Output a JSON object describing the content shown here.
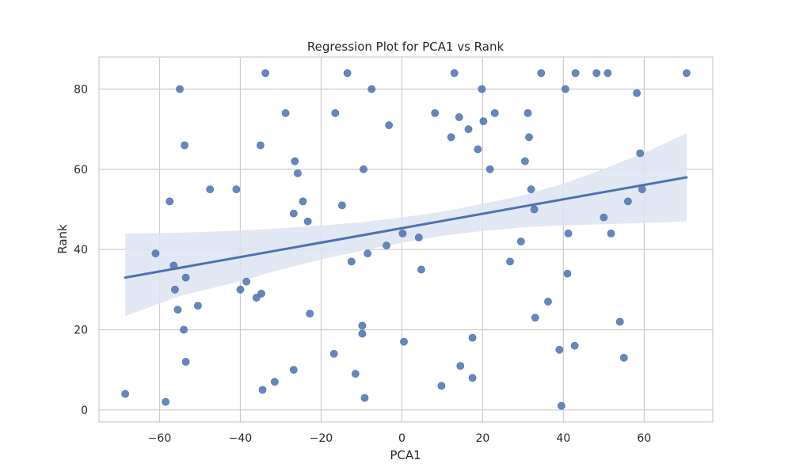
{
  "chart_data": {
    "type": "scatter",
    "title": "Regression Plot for PCA1 vs Rank",
    "xlabel": "PCA1",
    "ylabel": "Rank",
    "xlim": [
      -75,
      77
    ],
    "ylim": [
      -3,
      88
    ],
    "xticks": [
      -60,
      -40,
      -20,
      0,
      20,
      40,
      60
    ],
    "xtick_labels": [
      "−60",
      "−40",
      "−20",
      "0",
      "20",
      "40",
      "60"
    ],
    "yticks": [
      0,
      20,
      40,
      60,
      80
    ],
    "ytick_labels": [
      "0",
      "20",
      "40",
      "60",
      "80"
    ],
    "grid": true,
    "point_color": "#4c72b0",
    "line_color": "#4c72b0",
    "band_color": "#dde4f1",
    "regression": {
      "x_start": -68.5,
      "y_start": 33,
      "x_end": 70.5,
      "y_end": 58
    },
    "confidence_band": {
      "x": [
        -68.5,
        -55,
        -40,
        -30,
        -20,
        -10,
        0,
        10,
        20,
        30,
        40,
        50,
        60,
        70.5
      ],
      "lower": [
        23.4,
        28.4,
        32.1,
        35.0,
        37.5,
        39.7,
        41.7,
        43.4,
        44.6,
        45.5,
        46.0,
        46.3,
        46.6,
        47.0
      ],
      "upper": [
        44.0,
        44.2,
        44.7,
        45.3,
        46.0,
        46.8,
        48.0,
        49.4,
        51.4,
        53.5,
        56.4,
        60.1,
        64.1,
        69.0
      ]
    },
    "points": [
      [
        -68.5,
        4
      ],
      [
        -61,
        39
      ],
      [
        -58.5,
        2
      ],
      [
        -57.5,
        52
      ],
      [
        -56.5,
        36
      ],
      [
        -56.2,
        30
      ],
      [
        -55.5,
        25
      ],
      [
        -55,
        80
      ],
      [
        -54,
        20
      ],
      [
        -53.8,
        66
      ],
      [
        -53.5,
        33
      ],
      [
        -53.5,
        12
      ],
      [
        -50.5,
        26
      ],
      [
        -47.5,
        55
      ],
      [
        -41,
        55
      ],
      [
        -40,
        30
      ],
      [
        -38.5,
        32
      ],
      [
        -36,
        28
      ],
      [
        -35,
        66
      ],
      [
        -34.8,
        29
      ],
      [
        -34.5,
        5
      ],
      [
        -33.8,
        84
      ],
      [
        -31.5,
        7
      ],
      [
        -28.8,
        74
      ],
      [
        -26.8,
        10
      ],
      [
        -26.8,
        49
      ],
      [
        -26.5,
        62
      ],
      [
        -25.8,
        59
      ],
      [
        -24.5,
        52
      ],
      [
        -23.3,
        47
      ],
      [
        -22.8,
        24
      ],
      [
        -16.8,
        14
      ],
      [
        -16.5,
        74
      ],
      [
        -14.8,
        51
      ],
      [
        -13.5,
        84
      ],
      [
        -12.5,
        37
      ],
      [
        -11.5,
        9
      ],
      [
        -9.8,
        21
      ],
      [
        -9.8,
        19
      ],
      [
        -9.5,
        60
      ],
      [
        -9.2,
        3
      ],
      [
        -8.5,
        39
      ],
      [
        -7.5,
        80
      ],
      [
        -3.8,
        41
      ],
      [
        -3.2,
        71
      ],
      [
        0.2,
        44
      ],
      [
        0.5,
        17
      ],
      [
        4.2,
        43
      ],
      [
        4.8,
        35
      ],
      [
        8.2,
        74
      ],
      [
        9.8,
        6
      ],
      [
        12.2,
        68
      ],
      [
        13,
        84
      ],
      [
        14.2,
        73
      ],
      [
        14.5,
        11
      ],
      [
        16.5,
        70
      ],
      [
        17.5,
        18
      ],
      [
        17.5,
        8
      ],
      [
        18.8,
        65
      ],
      [
        19.8,
        80
      ],
      [
        20.2,
        72
      ],
      [
        21.8,
        60
      ],
      [
        23,
        74
      ],
      [
        26.8,
        37
      ],
      [
        29.5,
        42
      ],
      [
        30.5,
        62
      ],
      [
        31.2,
        74
      ],
      [
        31.5,
        68
      ],
      [
        32,
        55
      ],
      [
        32.8,
        50
      ],
      [
        33,
        23
      ],
      [
        34.5,
        84
      ],
      [
        36.2,
        27
      ],
      [
        39,
        15
      ],
      [
        39.5,
        1
      ],
      [
        40.5,
        80
      ],
      [
        41,
        34
      ],
      [
        41.2,
        44
      ],
      [
        42.8,
        16
      ],
      [
        43,
        84
      ],
      [
        48.2,
        84
      ],
      [
        50,
        48
      ],
      [
        51,
        84
      ],
      [
        51.8,
        44
      ],
      [
        54,
        22
      ],
      [
        55,
        13
      ],
      [
        56,
        52
      ],
      [
        58.2,
        79
      ],
      [
        59,
        64
      ],
      [
        59.5,
        55
      ],
      [
        70.5,
        84
      ]
    ]
  }
}
